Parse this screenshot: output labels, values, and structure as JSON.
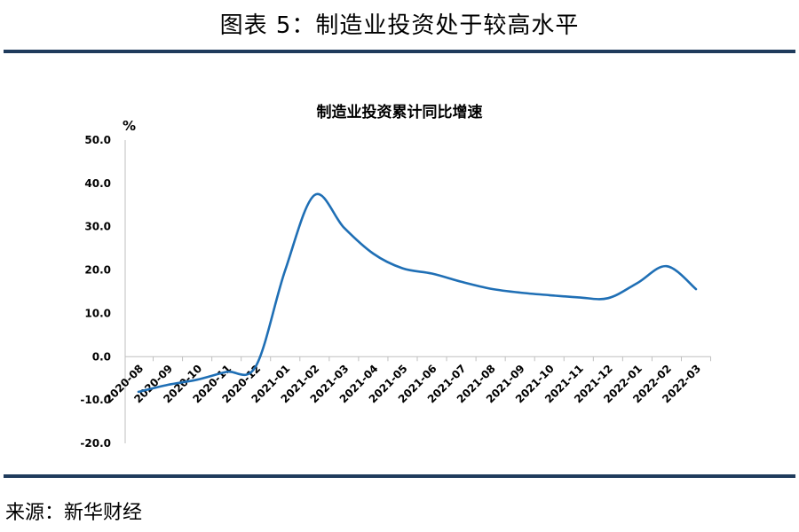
{
  "figure": {
    "title": "图表 5：制造业投资处于较高水平",
    "source": "来源：新华财经"
  },
  "chart_data": {
    "type": "line",
    "title": "制造业投资累计同比增速",
    "ylabel": "%",
    "xlabel": "",
    "ylim": [
      -20,
      50
    ],
    "yticks": [
      "50.0",
      "40.0",
      "30.0",
      "20.0",
      "10.0",
      "0.0",
      "-10.0",
      "-20.0"
    ],
    "categories": [
      "2020-08",
      "2020-09",
      "2020-10",
      "2020-11",
      "2020-12",
      "2021-01",
      "2021-02",
      "2021-03",
      "2021-04",
      "2021-05",
      "2021-06",
      "2021-07",
      "2021-08",
      "2021-09",
      "2021-10",
      "2021-11",
      "2021-12",
      "2022-01",
      "2022-02",
      "2022-03"
    ],
    "values": [
      -8.1,
      -6.5,
      -5.3,
      -3.5,
      -2.2,
      20.0,
      37.3,
      29.8,
      23.8,
      20.4,
      19.2,
      17.3,
      15.7,
      14.8,
      14.2,
      13.7,
      13.5,
      17.0,
      20.9,
      15.6
    ],
    "line_color": "#1f6fb5",
    "grid": false
  }
}
